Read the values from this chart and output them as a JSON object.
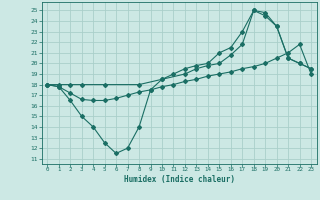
{
  "bg_color": "#cce8e4",
  "grid_color": "#aacfca",
  "line_color": "#1a6e64",
  "xlabel": "Humidex (Indice chaleur)",
  "xlim": [
    -0.5,
    23.5
  ],
  "ylim": [
    10.5,
    25.8
  ],
  "xticks": [
    0,
    1,
    2,
    3,
    4,
    5,
    6,
    7,
    8,
    9,
    10,
    11,
    12,
    13,
    14,
    15,
    16,
    17,
    18,
    19,
    20,
    21,
    22,
    23
  ],
  "yticks": [
    11,
    12,
    13,
    14,
    15,
    16,
    17,
    18,
    19,
    20,
    21,
    22,
    23,
    24,
    25
  ],
  "line1_x": [
    0,
    1,
    2,
    3,
    4,
    5,
    6,
    7,
    8,
    9,
    10,
    11,
    12,
    13,
    14,
    15,
    16,
    17,
    18,
    19,
    20,
    21,
    22,
    23
  ],
  "line1_y": [
    18,
    17.8,
    17.2,
    16.6,
    16.5,
    16.5,
    16.7,
    17.0,
    17.3,
    17.5,
    17.8,
    18.0,
    18.3,
    18.5,
    18.8,
    19.0,
    19.2,
    19.5,
    19.7,
    20.0,
    20.5,
    21.0,
    21.8,
    19.0
  ],
  "line2_x": [
    0,
    1,
    2,
    3,
    4,
    5,
    6,
    7,
    8,
    9,
    10,
    11,
    12,
    13,
    14,
    15,
    16,
    17,
    18,
    19,
    20,
    21,
    22,
    23
  ],
  "line2_y": [
    18,
    17.8,
    16.5,
    15.0,
    14.0,
    12.5,
    11.5,
    12.0,
    14.0,
    17.5,
    18.5,
    19.0,
    19.5,
    19.8,
    20.0,
    21.0,
    21.5,
    23.0,
    25.0,
    24.5,
    23.5,
    20.5,
    20.0,
    19.5
  ],
  "line3_x": [
    0,
    1,
    2,
    3,
    5,
    8,
    10,
    12,
    13,
    14,
    15,
    16,
    17,
    18,
    19,
    20,
    21,
    22,
    23
  ],
  "line3_y": [
    18,
    18,
    18,
    18,
    18,
    18,
    18.5,
    19.0,
    19.5,
    19.8,
    20.0,
    20.8,
    21.8,
    25.0,
    24.8,
    23.5,
    20.5,
    20.0,
    19.5
  ]
}
